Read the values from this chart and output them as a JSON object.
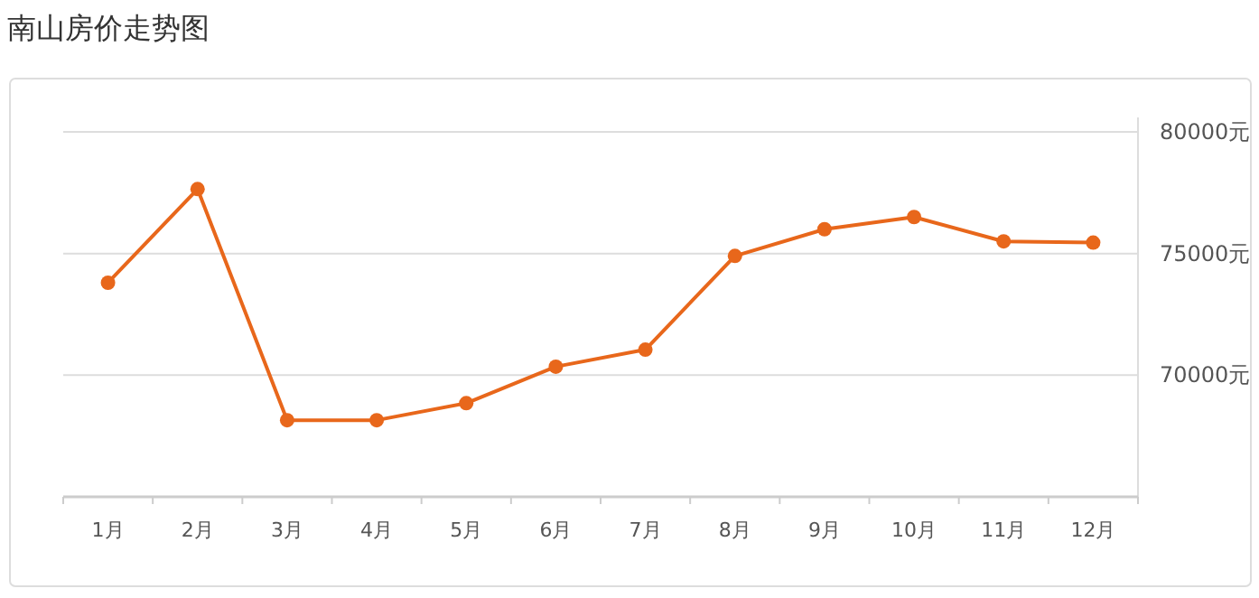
{
  "chart_data": {
    "type": "line",
    "title": "南山房价走势图",
    "categories": [
      "1月",
      "2月",
      "3月",
      "4月",
      "5月",
      "6月",
      "7月",
      "8月",
      "9月",
      "10月",
      "11月",
      "12月"
    ],
    "series": [
      {
        "color": "#e8671b",
        "values": [
          73800,
          77650,
          68150,
          68150,
          68850,
          70350,
          71050,
          74900,
          76000,
          76500,
          75500,
          75450
        ]
      }
    ],
    "ylim": [
      65000,
      80000
    ],
    "yticks": [
      {
        "value": 70000,
        "label": "70000元"
      },
      {
        "value": 75000,
        "label": "75000元"
      },
      {
        "value": 80000,
        "label": "80000元"
      }
    ],
    "grid": "y",
    "marker": "circle",
    "line_style": "solid"
  }
}
